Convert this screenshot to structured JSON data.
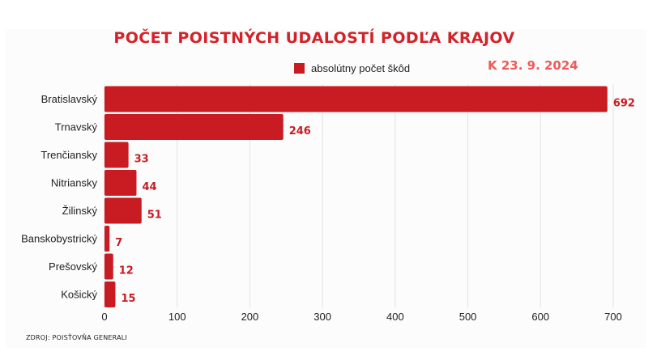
{
  "header": {
    "title": "POČET POISTNÝCH UDALOSTÍ PODĽA KRAJOV",
    "date_label": "K 23. 9. 2024"
  },
  "legend": {
    "label": "absolútny počet škôd"
  },
  "footer": {
    "source": "ZDROJ: POISŤOVŇA GENERALI"
  },
  "colors": {
    "bar": "#c81c22",
    "title": "#d2232a",
    "date": "#ee5a5a",
    "grid": "#e2e2e2"
  },
  "chart_data": {
    "type": "bar",
    "orientation": "horizontal",
    "title": "POČET POISTNÝCH UDALOSTÍ PODĽA KRAJOV",
    "categories": [
      "Bratislavský",
      "Trnavský",
      "Trenčiansky",
      "Nitriansky",
      "Žilinský",
      "Banskobystrický",
      "Prešovský",
      "Košický"
    ],
    "series": [
      {
        "name": "absolútny počet škôd",
        "values": [
          692,
          246,
          33,
          44,
          51,
          7,
          12,
          15
        ]
      }
    ],
    "value_labels": [
      "692",
      "246",
      "33",
      "44",
      "51",
      "7",
      "12",
      "15"
    ],
    "xlim": [
      0,
      700
    ],
    "xticks": [
      0,
      100,
      200,
      300,
      400,
      500,
      600,
      700
    ],
    "grid": true,
    "legend_position": "top"
  }
}
